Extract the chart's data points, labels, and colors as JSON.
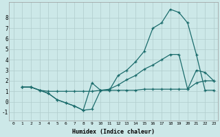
{
  "xlabel": "Humidex (Indice chaleur)",
  "background_color": "#cce8e8",
  "grid_color": "#b0cccc",
  "line_color": "#1a6b6b",
  "xlim": [
    -0.5,
    23.5
  ],
  "ylim": [
    -1.8,
    9.5
  ],
  "yticks": [
    -1,
    0,
    1,
    2,
    3,
    4,
    5,
    6,
    7,
    8
  ],
  "xticks": [
    0,
    1,
    2,
    3,
    4,
    5,
    6,
    7,
    8,
    9,
    10,
    11,
    12,
    13,
    14,
    15,
    16,
    17,
    18,
    19,
    20,
    21,
    22,
    23
  ],
  "line1_x": [
    1,
    2,
    3,
    4,
    5,
    6,
    7,
    8,
    9,
    10,
    11,
    12,
    13,
    14,
    15,
    16,
    17,
    18,
    19,
    20,
    21,
    22,
    23
  ],
  "line1_y": [
    1.4,
    1.4,
    1.1,
    1.0,
    1.0,
    1.0,
    1.0,
    1.0,
    1.0,
    1.1,
    1.1,
    1.1,
    1.1,
    1.1,
    1.2,
    1.2,
    1.2,
    1.2,
    1.2,
    1.2,
    1.8,
    2.0,
    2.0
  ],
  "line2_x": [
    1,
    2,
    3,
    4,
    5,
    6,
    7,
    8,
    9,
    10,
    11,
    12,
    13,
    14,
    15,
    16,
    17,
    18,
    19,
    20,
    21,
    22,
    23
  ],
  "line2_y": [
    1.4,
    1.4,
    1.1,
    0.8,
    0.2,
    -0.1,
    -0.4,
    -0.8,
    1.8,
    1.1,
    1.1,
    2.5,
    3.0,
    3.8,
    4.8,
    7.0,
    7.5,
    8.8,
    8.5,
    7.5,
    4.5,
    1.1,
    1.1
  ],
  "line3_x": [
    1,
    2,
    3,
    4,
    5,
    6,
    7,
    8,
    9,
    10,
    11,
    12,
    13,
    14,
    15,
    16,
    17,
    18,
    19,
    20,
    21,
    22,
    23
  ],
  "line3_y": [
    1.4,
    1.4,
    1.1,
    0.8,
    0.2,
    -0.1,
    -0.4,
    -0.8,
    -0.7,
    1.1,
    1.2,
    1.6,
    2.1,
    2.5,
    3.1,
    3.5,
    4.0,
    4.5,
    4.5,
    1.2,
    3.0,
    2.8,
    2.0
  ]
}
